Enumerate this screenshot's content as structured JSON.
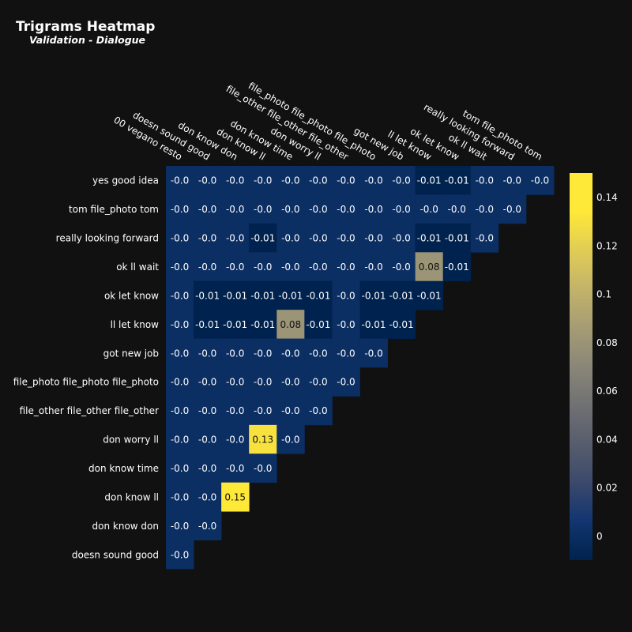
{
  "chart_data": {
    "type": "heatmap",
    "title": "Trigrams Heatmap",
    "subtitle": "Validation - Dialogue",
    "x_labels": [
      "00 vegano resto",
      "doesn sound good",
      "don know don",
      "don know ll",
      "don know time",
      "don worry ll",
      "file_other file_other file_other",
      "file_photo file_photo file_photo",
      "got new job",
      "ll let know",
      "ok let know",
      "ok ll wait",
      "really looking forward",
      "tom file_photo tom"
    ],
    "y_labels": [
      "yes good idea",
      "tom file_photo tom",
      "really looking forward",
      "ok ll wait",
      "ok let know",
      "ll let know",
      "got new job",
      "file_photo file_photo file_photo",
      "file_other file_other file_other",
      "don worry ll",
      "don know time",
      "don know ll",
      "don know don",
      "doesn sound good"
    ],
    "values": [
      [
        -0.0,
        -0.0,
        -0.0,
        -0.0,
        -0.0,
        -0.0,
        -0.0,
        -0.0,
        -0.0,
        -0.01,
        -0.01,
        -0.0,
        -0.0,
        -0.0
      ],
      [
        -0.0,
        -0.0,
        -0.0,
        -0.0,
        -0.0,
        -0.0,
        -0.0,
        -0.0,
        -0.0,
        -0.0,
        -0.0,
        -0.0,
        -0.0
      ],
      [
        -0.0,
        -0.0,
        -0.0,
        -0.01,
        -0.0,
        -0.0,
        -0.0,
        -0.0,
        -0.0,
        -0.01,
        -0.01,
        -0.0
      ],
      [
        -0.0,
        -0.0,
        -0.0,
        -0.0,
        -0.0,
        -0.0,
        -0.0,
        -0.0,
        -0.0,
        0.08,
        -0.01
      ],
      [
        -0.0,
        -0.01,
        -0.01,
        -0.01,
        -0.01,
        -0.01,
        -0.0,
        -0.01,
        -0.01,
        -0.01
      ],
      [
        -0.0,
        -0.01,
        -0.01,
        -0.01,
        0.08,
        -0.01,
        -0.0,
        -0.01,
        -0.01
      ],
      [
        -0.0,
        -0.0,
        -0.0,
        -0.0,
        -0.0,
        -0.0,
        -0.0,
        -0.0
      ],
      [
        -0.0,
        -0.0,
        -0.0,
        -0.0,
        -0.0,
        -0.0,
        -0.0
      ],
      [
        -0.0,
        -0.0,
        -0.0,
        -0.0,
        -0.0,
        -0.0
      ],
      [
        -0.0,
        -0.0,
        -0.0,
        0.13,
        -0.0
      ],
      [
        -0.0,
        -0.0,
        -0.0,
        -0.0
      ],
      [
        -0.0,
        -0.0,
        0.15
      ],
      [
        -0.0,
        -0.0
      ],
      [
        -0.0
      ]
    ],
    "colorscale": "cividis",
    "zmin": -0.01,
    "zmax": 0.15,
    "colorbar": {
      "ticks": [
        0,
        0.02,
        0.04,
        0.06,
        0.08,
        0.1,
        0.12,
        0.14
      ],
      "tick_labels": [
        "0",
        "0.02",
        "0.04",
        "0.06",
        "0.08",
        "0.1",
        "0.12",
        "0.14"
      ]
    },
    "background": "#111111"
  }
}
